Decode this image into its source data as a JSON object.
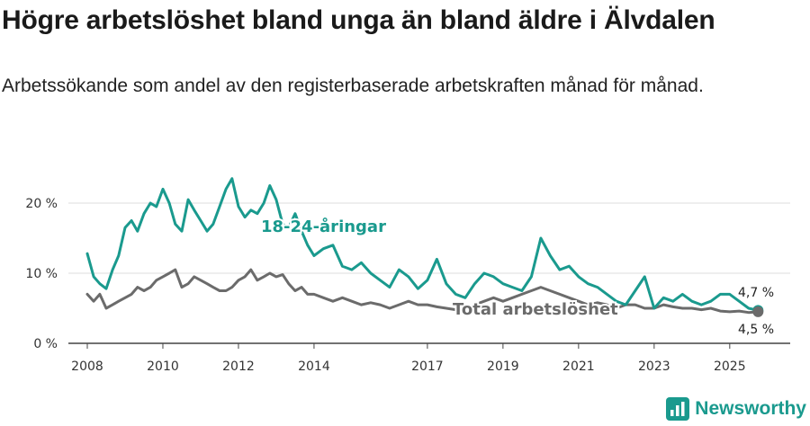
{
  "title": "Högre arbetslöshet bland unga än bland äldre i Älvdalen",
  "subtitle": "Arbetssökande som andel av den registerbaserade arbetskraften månad för månad.",
  "brand": {
    "name": "Newsworthy",
    "icon": "newsworthy-logo-icon",
    "color": "#1a9a8e"
  },
  "colors": {
    "youth": "#1a9a8e",
    "total": "#6b6b6b",
    "grid": "#dddddd",
    "axis": "#444444"
  },
  "chart_data": {
    "type": "line",
    "title": "Högre arbetslöshet bland unga än bland äldre i Älvdalen",
    "xlabel": "",
    "ylabel": "",
    "xlim": [
      2007.5,
      2026.6
    ],
    "ylim": [
      0,
      20
    ],
    "y_ticks": [
      0,
      10,
      20
    ],
    "y_tick_labels": [
      "0 %",
      "10 %",
      "20 %"
    ],
    "x_ticks": [
      2008,
      2010,
      2012,
      2014,
      2017,
      2019,
      2021,
      2023,
      2025
    ],
    "x_tick_labels": [
      "2008",
      "2010",
      "2012",
      "2014",
      "2017",
      "2019",
      "2021",
      "2023",
      "2025"
    ],
    "grid": true,
    "series": [
      {
        "name": "18-24-åringar",
        "label": "18-24-åringar",
        "end_label": "4,7 %",
        "x": [
          2008.0,
          2008.17,
          2008.33,
          2008.5,
          2008.67,
          2008.83,
          2009.0,
          2009.17,
          2009.33,
          2009.5,
          2009.67,
          2009.83,
          2010.0,
          2010.17,
          2010.33,
          2010.5,
          2010.67,
          2010.83,
          2011.0,
          2011.17,
          2011.33,
          2011.5,
          2011.67,
          2011.83,
          2012.0,
          2012.17,
          2012.33,
          2012.5,
          2012.67,
          2012.83,
          2013.0,
          2013.17,
          2013.33,
          2013.5,
          2013.67,
          2013.83,
          2014.0,
          2014.25,
          2014.5,
          2014.75,
          2015.0,
          2015.25,
          2015.5,
          2015.75,
          2016.0,
          2016.25,
          2016.5,
          2016.75,
          2017.0,
          2017.25,
          2017.5,
          2017.75,
          2018.0,
          2018.25,
          2018.5,
          2018.75,
          2019.0,
          2019.25,
          2019.5,
          2019.75,
          2020.0,
          2020.25,
          2020.5,
          2020.75,
          2021.0,
          2021.25,
          2021.5,
          2021.75,
          2022.0,
          2022.25,
          2022.5,
          2022.75,
          2023.0,
          2023.25,
          2023.5,
          2023.75,
          2024.0,
          2024.25,
          2024.5,
          2024.75,
          2025.0,
          2025.25,
          2025.5,
          2025.75
        ],
        "values": [
          12.8,
          9.5,
          8.5,
          7.8,
          10.5,
          12.5,
          16.5,
          17.5,
          16.0,
          18.5,
          20.0,
          19.5,
          22.0,
          20.0,
          17.0,
          16.0,
          20.5,
          19.0,
          17.5,
          16.0,
          17.0,
          19.5,
          22.0,
          23.5,
          19.5,
          18.0,
          19.0,
          18.5,
          20.0,
          22.5,
          20.5,
          17.0,
          16.5,
          18.5,
          16.0,
          14.0,
          12.5,
          13.5,
          14.0,
          11.0,
          10.5,
          11.5,
          10.0,
          9.0,
          8.0,
          10.5,
          9.5,
          7.8,
          9.0,
          12.0,
          8.5,
          7.0,
          6.5,
          8.5,
          10.0,
          9.5,
          8.5,
          8.0,
          7.5,
          9.5,
          15.0,
          12.5,
          10.5,
          11.0,
          9.5,
          8.5,
          8.0,
          7.0,
          6.0,
          5.5,
          7.5,
          9.5,
          5.0,
          6.5,
          6.0,
          7.0,
          6.0,
          5.5,
          6.0,
          7.0,
          7.0,
          6.0,
          5.0,
          4.7
        ]
      },
      {
        "name": "Total arbetslöshet",
        "label": "Total arbetslöshet",
        "end_label": "4,5 %",
        "x": [
          2008.0,
          2008.17,
          2008.33,
          2008.5,
          2008.67,
          2008.83,
          2009.0,
          2009.17,
          2009.33,
          2009.5,
          2009.67,
          2009.83,
          2010.0,
          2010.17,
          2010.33,
          2010.5,
          2010.67,
          2010.83,
          2011.0,
          2011.17,
          2011.33,
          2011.5,
          2011.67,
          2011.83,
          2012.0,
          2012.17,
          2012.33,
          2012.5,
          2012.67,
          2012.83,
          2013.0,
          2013.17,
          2013.33,
          2013.5,
          2013.67,
          2013.83,
          2014.0,
          2014.25,
          2014.5,
          2014.75,
          2015.0,
          2015.25,
          2015.5,
          2015.75,
          2016.0,
          2016.25,
          2016.5,
          2016.75,
          2017.0,
          2017.25,
          2017.5,
          2017.75,
          2018.0,
          2018.25,
          2018.5,
          2018.75,
          2019.0,
          2019.25,
          2019.5,
          2019.75,
          2020.0,
          2020.25,
          2020.5,
          2020.75,
          2021.0,
          2021.25,
          2021.5,
          2021.75,
          2022.0,
          2022.25,
          2022.5,
          2022.75,
          2023.0,
          2023.25,
          2023.5,
          2023.75,
          2024.0,
          2024.25,
          2024.5,
          2024.75,
          2025.0,
          2025.25,
          2025.5,
          2025.75
        ],
        "values": [
          7.0,
          6.0,
          7.0,
          5.0,
          5.5,
          6.0,
          6.5,
          7.0,
          8.0,
          7.5,
          8.0,
          9.0,
          9.5,
          10.0,
          10.5,
          8.0,
          8.5,
          9.5,
          9.0,
          8.5,
          8.0,
          7.5,
          7.5,
          8.0,
          9.0,
          9.5,
          10.5,
          9.0,
          9.5,
          10.0,
          9.5,
          9.8,
          8.5,
          7.5,
          8.0,
          7.0,
          7.0,
          6.5,
          6.0,
          6.5,
          6.0,
          5.5,
          5.8,
          5.5,
          5.0,
          5.5,
          6.0,
          5.5,
          5.5,
          5.2,
          5.0,
          4.8,
          5.0,
          5.5,
          6.0,
          6.5,
          6.0,
          6.5,
          7.0,
          7.5,
          8.0,
          7.5,
          7.0,
          6.5,
          6.0,
          5.5,
          5.8,
          5.5,
          5.0,
          5.5,
          5.5,
          5.0,
          5.0,
          5.5,
          5.2,
          5.0,
          5.0,
          4.8,
          5.0,
          4.6,
          4.5,
          4.6,
          4.4,
          4.5
        ]
      }
    ]
  }
}
